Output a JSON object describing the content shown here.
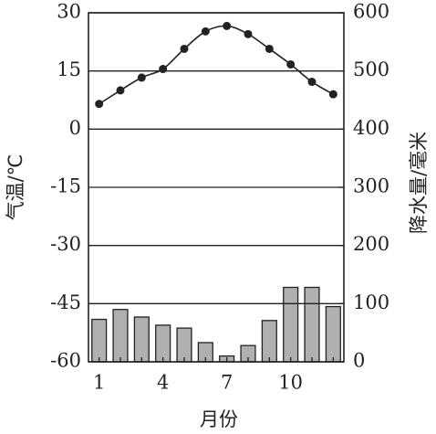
{
  "chart_data": {
    "type": "combo",
    "ylabel": "气温/℃",
    "y2label": "降水量/毫米",
    "xlabel": "月份",
    "categories": [
      "1",
      null,
      null,
      "4",
      null,
      null,
      "7",
      null,
      null,
      "10",
      null,
      null
    ],
    "ylim": [
      -60,
      30
    ],
    "yticks": [
      -60,
      -45,
      -30,
      -15,
      0,
      15,
      30
    ],
    "y2lim": [
      0,
      600
    ],
    "y2ticks": [
      0,
      100,
      200,
      300,
      400,
      500,
      600
    ],
    "grid": true,
    "series": [
      {
        "type": "bar",
        "axis": "y2",
        "color": "#b0b0b0",
        "values": [
          73,
          90,
          77,
          63,
          58,
          33,
          10,
          28,
          71,
          128,
          128,
          95
        ]
      },
      {
        "type": "line",
        "axis": "y",
        "color": "#222222",
        "values": [
          6.5,
          10,
          13.3,
          15.5,
          20.7,
          25.2,
          26.6,
          24.5,
          20.7,
          16.7,
          12.2,
          9
        ]
      }
    ]
  }
}
